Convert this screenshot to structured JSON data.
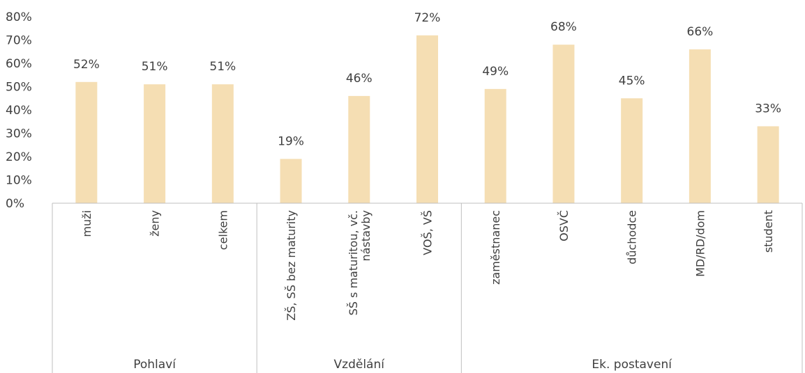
{
  "chart_data": {
    "type": "bar",
    "title": "",
    "xlabel": "",
    "ylabel": "",
    "ylim": [
      0,
      80
    ],
    "yticks": [
      "0%",
      "10%",
      "20%",
      "30%",
      "40%",
      "50%",
      "60%",
      "70%",
      "80%"
    ],
    "grid": false,
    "bar_color": "#F5DEB3",
    "categories": [
      "muži",
      "ženy",
      "celkem",
      "ZŠ, SŠ bez maturity",
      "SŠ s maturitou, vč. nástavby",
      "VOŠ, VŠ",
      "zaměstnanec",
      "OSVČ",
      "důchodce",
      "MD/RD/dom",
      "student"
    ],
    "category_lines": [
      [
        "muži"
      ],
      [
        "ženy"
      ],
      [
        "celkem"
      ],
      [
        "ZŠ, SŠ bez maturity"
      ],
      [
        "SŠ s maturitou, vč.",
        "nástavby"
      ],
      [
        "VOŠ, VŠ"
      ],
      [
        "zaměstnanec"
      ],
      [
        "OSVČ"
      ],
      [
        "důchodce"
      ],
      [
        "MD/RD/dom"
      ],
      [
        "student"
      ]
    ],
    "values": [
      52,
      51,
      51,
      19,
      46,
      72,
      49,
      68,
      45,
      66,
      33
    ],
    "data_labels": [
      "52%",
      "51%",
      "51%",
      "19%",
      "46%",
      "72%",
      "49%",
      "68%",
      "45%",
      "66%",
      "33%"
    ],
    "groups": [
      {
        "label": "Pohlaví",
        "count": 3
      },
      {
        "label": "Vzdělání",
        "count": 3
      },
      {
        "label": "Ek. postavení",
        "count": 5
      }
    ]
  }
}
